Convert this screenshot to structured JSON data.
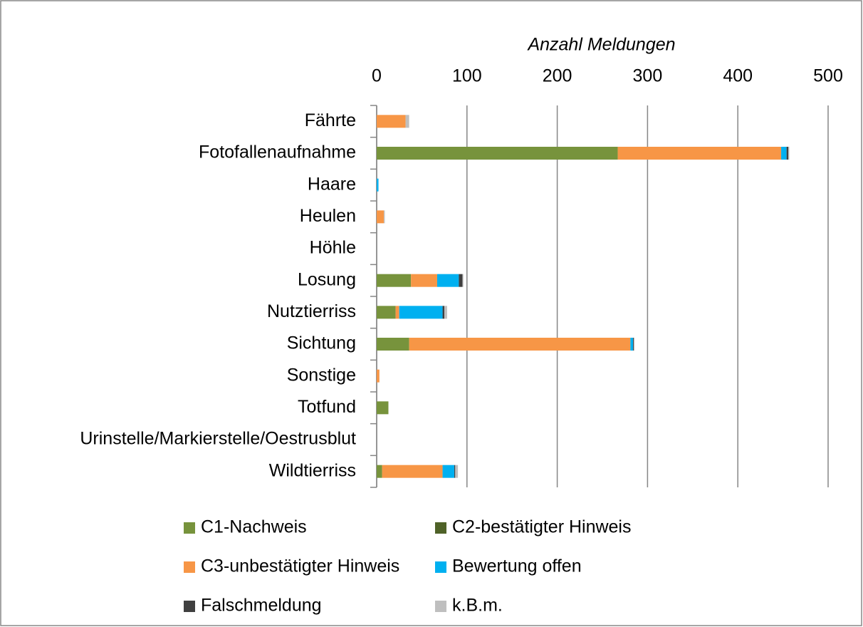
{
  "chart_data": {
    "type": "stacked_barh",
    "x_label": "Anzahl Meldungen",
    "categories": [
      "Fährte",
      "Fotofallenaufnahme",
      "Haare",
      "Heulen",
      "Höhle",
      "Losung",
      "Nutztierriss",
      "Sichtung",
      "Sonstige",
      "Totfund",
      "Urinstelle/Markierstelle/Oestrusblut",
      "Wildtierriss"
    ],
    "series": [
      {
        "name": "C1-Nachweis",
        "color": "#77933c",
        "values": [
          0,
          267,
          0,
          0,
          0,
          38,
          21,
          36,
          0,
          13,
          0,
          6
        ]
      },
      {
        "name": "C2-bestätigter Hinweis",
        "color": "#4f6228",
        "values": [
          0,
          0,
          0,
          0,
          0,
          0,
          0,
          0,
          0,
          0,
          0,
          0
        ]
      },
      {
        "name": "C3-unbestätigter Hinweis",
        "color": "#f79646",
        "values": [
          32,
          181,
          0,
          8,
          0,
          29,
          4,
          245,
          3,
          0,
          0,
          67
        ]
      },
      {
        "name": "Bewertung offen",
        "color": "#00b0f0",
        "values": [
          0,
          6,
          2,
          0,
          0,
          24,
          48,
          3,
          0,
          0,
          0,
          13
        ]
      },
      {
        "name": "Falschmeldung",
        "color": "#404040",
        "values": [
          0,
          2,
          0,
          0,
          0,
          4,
          2,
          1,
          0,
          0,
          0,
          1
        ]
      },
      {
        "name": "k.B.m.",
        "color": "#bfbfbf",
        "values": [
          4,
          1,
          0,
          1,
          0,
          1,
          3,
          0,
          0,
          0,
          0,
          3
        ]
      }
    ],
    "xlim": [
      0,
      500
    ],
    "xticks": [
      0,
      100,
      200,
      300,
      400,
      500
    ],
    "grid": true
  }
}
